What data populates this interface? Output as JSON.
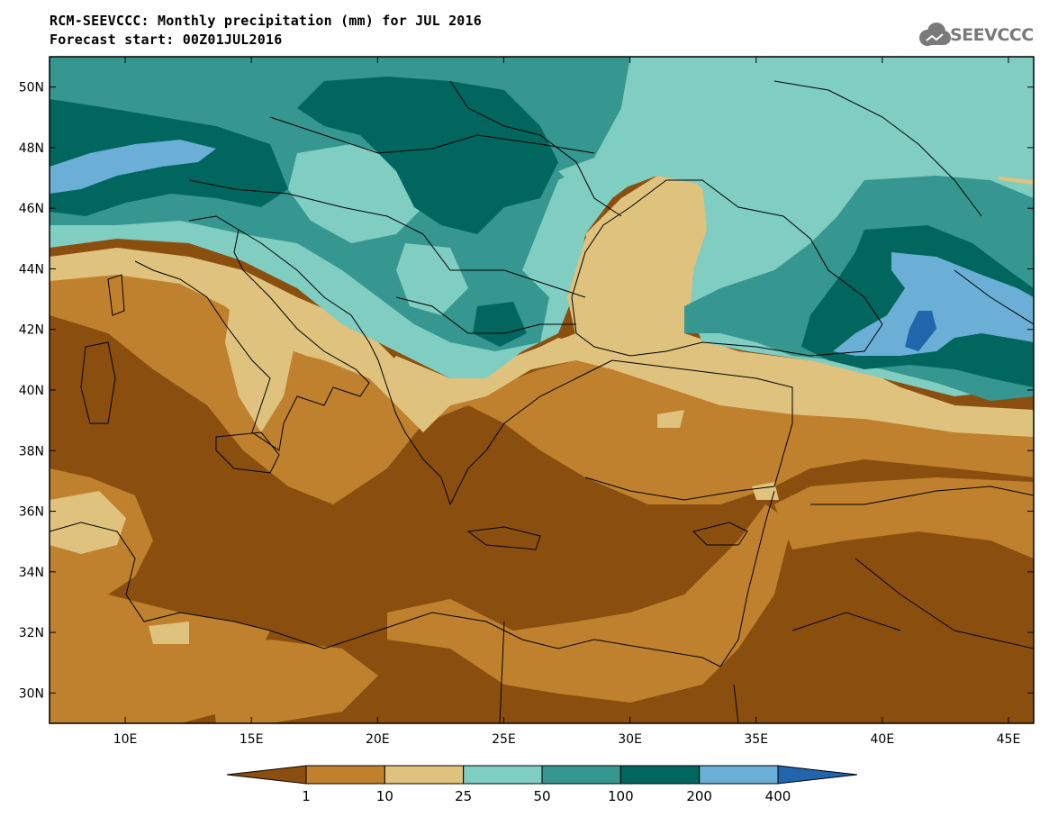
{
  "header": {
    "title_line1": "RCM-SEEVCCC: Monthly precipitation (mm) for JUL 2016",
    "title_line2": "Forecast start: 00Z01JUL2016",
    "logo_text": "SEEVCCC"
  },
  "map": {
    "lon_range": [
      7,
      46
    ],
    "lat_range": [
      29,
      51
    ],
    "x_ticks": [
      "10E",
      "15E",
      "20E",
      "25E",
      "30E",
      "35E",
      "40E",
      "45E"
    ],
    "y_ticks": [
      "50N",
      "48N",
      "46N",
      "44N",
      "42N",
      "40N",
      "38N",
      "36N",
      "34N",
      "32N",
      "30N"
    ]
  },
  "legend": {
    "thresholds": [
      "1",
      "10",
      "25",
      "50",
      "100",
      "200",
      "400"
    ],
    "colors": [
      "#8a4f0f",
      "#bf812d",
      "#dfc27d",
      "#80cdc1",
      "#35978f",
      "#01665e",
      "#6baed6",
      "#2166ac"
    ]
  }
}
